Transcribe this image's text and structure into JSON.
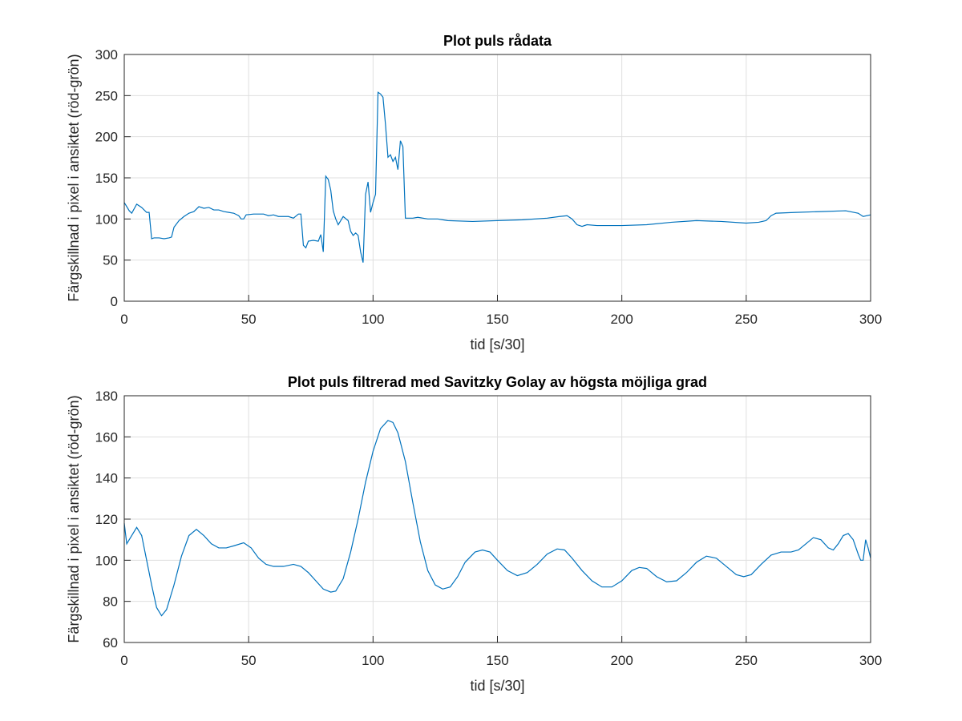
{
  "chart_data": [
    {
      "type": "line",
      "title": "Plot puls rådata",
      "xlabel": "tid [s/30]",
      "ylabel": "Färgskillnad i pixel i ansiktet (röd-grön)",
      "color": "#0072bd",
      "grid": true,
      "xlim": [
        0,
        300
      ],
      "ylim": [
        0,
        300
      ],
      "xticks": [
        0,
        50,
        100,
        150,
        200,
        250,
        300
      ],
      "yticks": [
        0,
        50,
        100,
        150,
        200,
        250,
        300
      ],
      "x": [
        0,
        2,
        3,
        5,
        7,
        9,
        10,
        11,
        12,
        14,
        16,
        18,
        19,
        20,
        22,
        24,
        26,
        28,
        30,
        32,
        34,
        36,
        38,
        40,
        42,
        44,
        46,
        47,
        48,
        49,
        52,
        56,
        58,
        60,
        62,
        66,
        68,
        70,
        71,
        72,
        73,
        74,
        76,
        78,
        79,
        80,
        81,
        82,
        83,
        84,
        85,
        86,
        88,
        90,
        91,
        92,
        93,
        94,
        95,
        96,
        97,
        98,
        99,
        100,
        101,
        102,
        103,
        104,
        105,
        106,
        107,
        108,
        109,
        110,
        111,
        112,
        113,
        116,
        118,
        122,
        126,
        130,
        140,
        150,
        160,
        170,
        175,
        178,
        180,
        182,
        184,
        186,
        190,
        200,
        210,
        220,
        230,
        240,
        250,
        255,
        258,
        260,
        262,
        270,
        280,
        290,
        295,
        297,
        300
      ],
      "values": [
        120,
        110,
        107,
        118,
        114,
        108,
        108,
        76,
        77,
        77,
        76,
        77,
        78,
        90,
        98,
        103,
        107,
        109,
        115,
        113,
        114,
        111,
        111,
        109,
        108,
        107,
        104,
        100,
        100,
        105,
        106,
        106,
        104,
        105,
        103,
        103,
        101,
        106,
        106,
        68,
        65,
        73,
        74,
        73,
        81,
        60,
        152,
        148,
        135,
        110,
        100,
        93,
        103,
        98,
        85,
        80,
        83,
        80,
        60,
        47,
        130,
        145,
        108,
        120,
        130,
        254,
        252,
        248,
        215,
        175,
        178,
        170,
        175,
        160,
        195,
        188,
        101,
        101,
        102,
        100,
        100,
        98,
        97,
        98,
        99,
        101,
        103,
        104,
        100,
        93,
        91,
        93,
        92,
        92,
        93,
        96,
        98,
        97,
        95,
        96,
        98,
        104,
        107,
        108,
        109,
        110,
        107,
        103,
        105
      ]
    },
    {
      "type": "line",
      "title": "Plot puls filtrerad med Savitzky Golay av högsta möjliga grad",
      "xlabel": "tid [s/30]",
      "ylabel": "Färgskillnad i pixel i ansiktet (röd-grön)",
      "color": "#0072bd",
      "grid": true,
      "xlim": [
        0,
        300
      ],
      "ylim": [
        60,
        180
      ],
      "xticks": [
        0,
        50,
        100,
        150,
        200,
        250,
        300
      ],
      "yticks": [
        60,
        80,
        100,
        120,
        140,
        160,
        180
      ],
      "x": [
        0,
        1,
        3,
        5,
        7,
        9,
        11,
        13,
        15,
        17,
        20,
        23,
        26,
        29,
        32,
        35,
        38,
        41,
        44,
        48,
        51,
        54,
        57,
        60,
        64,
        68,
        71,
        74,
        77,
        80,
        83,
        85,
        88,
        91,
        94,
        97,
        100,
        103,
        106,
        108,
        110,
        113,
        116,
        119,
        122,
        125,
        128,
        131,
        134,
        137,
        141,
        144,
        147,
        150,
        154,
        158,
        162,
        166,
        170,
        174,
        177,
        180,
        184,
        188,
        192,
        196,
        200,
        204,
        207,
        210,
        214,
        218,
        222,
        226,
        230,
        234,
        238,
        242,
        246,
        249,
        252,
        256,
        260,
        264,
        268,
        271,
        274,
        277,
        280,
        283,
        285,
        287,
        289,
        291,
        293,
        295,
        296,
        297,
        298,
        299,
        300
      ],
      "values": [
        118,
        108,
        112,
        116,
        112,
        100,
        88,
        77,
        73,
        76,
        88,
        102,
        112,
        115,
        112,
        108,
        106,
        106,
        107,
        108.5,
        106,
        101,
        98,
        97,
        97,
        98,
        97,
        94,
        90,
        86,
        84.5,
        85,
        91,
        104,
        120,
        138,
        153,
        164,
        168,
        167,
        162,
        148,
        128,
        109,
        95,
        88,
        86,
        87,
        92,
        99,
        104,
        105,
        104,
        100,
        95,
        92.5,
        94,
        98,
        103,
        105.5,
        105,
        101,
        95,
        90,
        87,
        87,
        90,
        95,
        96.5,
        96,
        92,
        89.5,
        90,
        94,
        99,
        102,
        101,
        97,
        93,
        92,
        93,
        98,
        102.5,
        104,
        104,
        105,
        108,
        111,
        110,
        106,
        105,
        108,
        112,
        113,
        110,
        103,
        100,
        100,
        110,
        106,
        101
      ]
    }
  ]
}
